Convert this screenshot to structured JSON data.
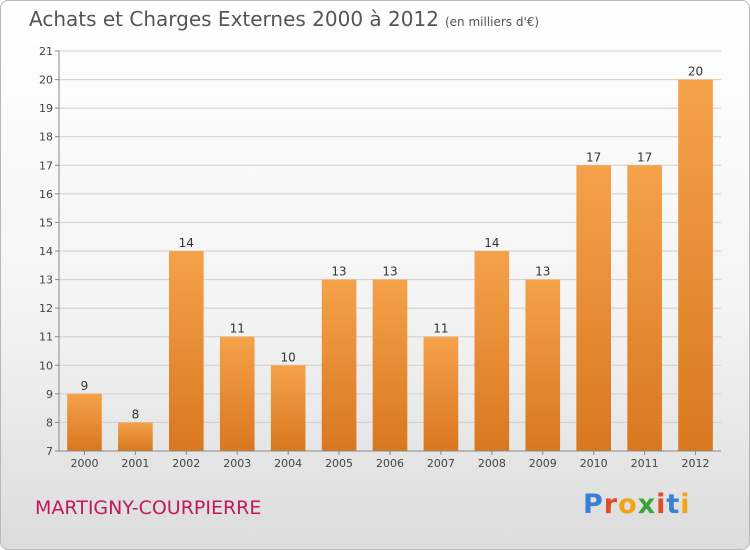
{
  "header": {
    "title": "Achats et Charges Externes 2000 à 2012",
    "unit": "(en milliers d'€)"
  },
  "footer": {
    "commune": "MARTIGNY-COURPIERRE",
    "logo": "Proxiti"
  },
  "colors": {
    "bar_top": "#f5a24a",
    "bar_bottom": "#d9771f",
    "commune": "#c2185b"
  },
  "chart_data": {
    "type": "bar",
    "title": "Achats et Charges Externes 2000 à 2012",
    "subtitle": "(en milliers d'€)",
    "categories": [
      "2000",
      "2001",
      "2002",
      "2003",
      "2004",
      "2005",
      "2006",
      "2007",
      "2008",
      "2009",
      "2010",
      "2011",
      "2012"
    ],
    "values": [
      9,
      8,
      14,
      11,
      10,
      13,
      13,
      11,
      14,
      13,
      17,
      17,
      20
    ],
    "ylim": [
      7,
      21
    ],
    "yticks": [
      7,
      8,
      9,
      10,
      11,
      12,
      13,
      14,
      15,
      16,
      17,
      18,
      19,
      20,
      21
    ],
    "grid": true,
    "legend": "none"
  }
}
